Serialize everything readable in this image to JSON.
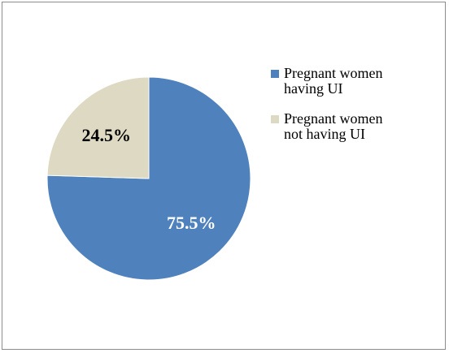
{
  "chart_data": {
    "type": "pie",
    "title": "",
    "slices": [
      {
        "name": "Pregnant women having UI",
        "value": 75.5,
        "label": "75.5%",
        "color": "#4f81bd",
        "label_color": "#ffffff"
      },
      {
        "name": "Pregnant women not having UI",
        "value": 24.5,
        "label": "24.5%",
        "color": "#ddd9c3",
        "label_color": "#000000"
      }
    ],
    "start_angle": "12 o'clock",
    "direction": "clockwise",
    "legend_position": "right"
  },
  "legend": {
    "items": [
      {
        "label_line1": "Pregnant women",
        "label_line2": "having UI"
      },
      {
        "label_line1": "Pregnant women",
        "label_line2": "not having UI"
      }
    ]
  }
}
